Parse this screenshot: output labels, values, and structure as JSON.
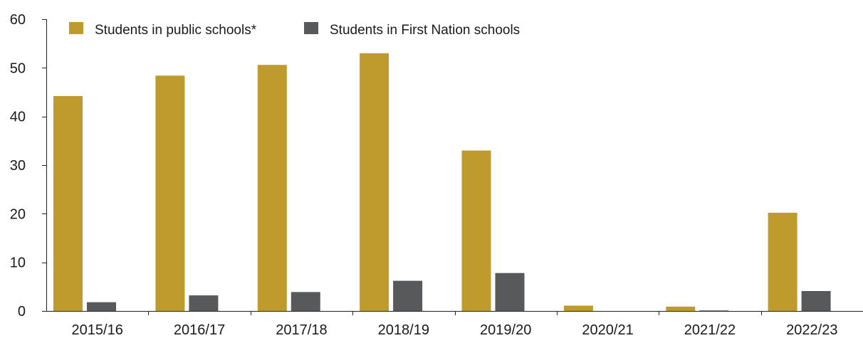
{
  "chart_data": {
    "type": "bar",
    "categories": [
      "2015/16",
      "2016/17",
      "2017/18",
      "2018/19",
      "2019/20",
      "2020/21",
      "2021/22",
      "2022/23"
    ],
    "series": [
      {
        "name": "Students in public schools*",
        "color": "#bf9b2e",
        "values": [
          44.2,
          48.4,
          50.6,
          53.0,
          33.0,
          1.1,
          0.9,
          20.2
        ]
      },
      {
        "name": "Students in First Nation schools",
        "color": "#58595b",
        "values": [
          1.8,
          3.2,
          3.9,
          6.2,
          7.8,
          0.0,
          0.1,
          4.1
        ]
      }
    ],
    "ylim": [
      0,
      60
    ],
    "yticks": [
      0,
      10,
      20,
      30,
      40,
      50,
      60
    ],
    "xlabel": "",
    "ylabel": "",
    "title": "",
    "grid": false,
    "legend_position": "top-left"
  }
}
